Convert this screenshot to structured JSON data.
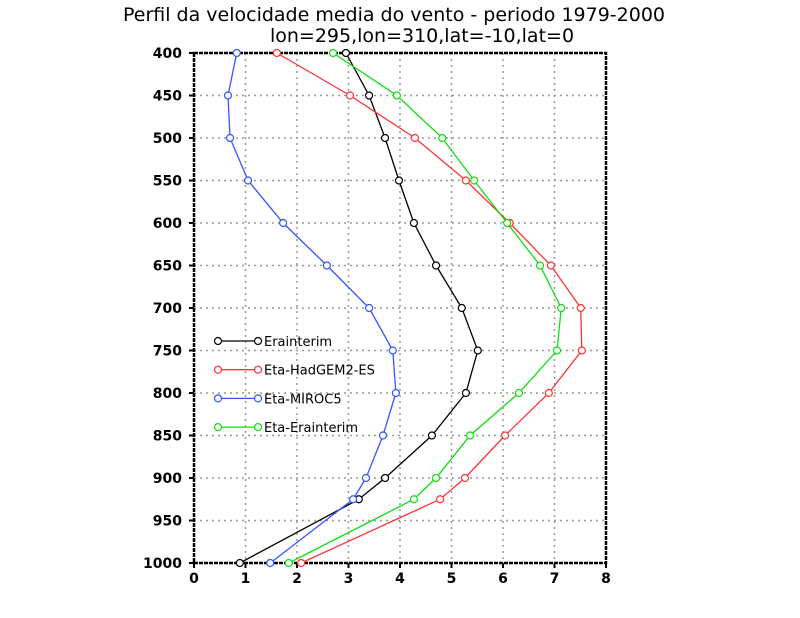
{
  "chart_data": {
    "type": "line",
    "title": "Perfil da velocidade media do vento - periodo 1979-2000",
    "subtitle": "lon=295,lon=310,lat=-10,lat=0",
    "xlabel": "",
    "ylabel": "",
    "xlim": [
      0,
      8
    ],
    "ylim": [
      1000,
      400
    ],
    "y_inverted": true,
    "grid": true,
    "legend_position": "center-left",
    "x_ticks": [
      "0",
      "1",
      "2",
      "3",
      "4",
      "5",
      "6",
      "7",
      "8"
    ],
    "y_ticks": [
      "400",
      "450",
      "500",
      "550",
      "600",
      "650",
      "700",
      "750",
      "800",
      "850",
      "900",
      "950",
      "1000"
    ],
    "levels": [
      400,
      450,
      500,
      550,
      600,
      650,
      700,
      750,
      800,
      850,
      900,
      925,
      1000
    ],
    "series": [
      {
        "name": "Erainterim",
        "color": "#000000",
        "values": [
          2.95,
          3.4,
          3.71,
          3.98,
          4.27,
          4.7,
          5.2,
          5.51,
          5.28,
          4.62,
          3.71,
          3.2,
          0.89
        ]
      },
      {
        "name": "Eta-HadGEM2-ES",
        "color": "#ff3333",
        "values": [
          1.61,
          3.03,
          4.29,
          5.28,
          6.13,
          6.93,
          7.51,
          7.53,
          6.89,
          6.04,
          5.26,
          4.78,
          2.08
        ]
      },
      {
        "name": "Eta-MIROC5",
        "color": "#3355ff",
        "values": [
          0.83,
          0.66,
          0.7,
          1.05,
          1.73,
          2.58,
          3.4,
          3.86,
          3.92,
          3.67,
          3.34,
          3.09,
          1.48
        ]
      },
      {
        "name": "Eta-Erainterim",
        "color": "#11dd11",
        "values": [
          2.7,
          3.94,
          4.82,
          5.44,
          6.08,
          6.72,
          7.13,
          7.05,
          6.31,
          5.36,
          4.7,
          4.27,
          1.84
        ]
      }
    ]
  }
}
